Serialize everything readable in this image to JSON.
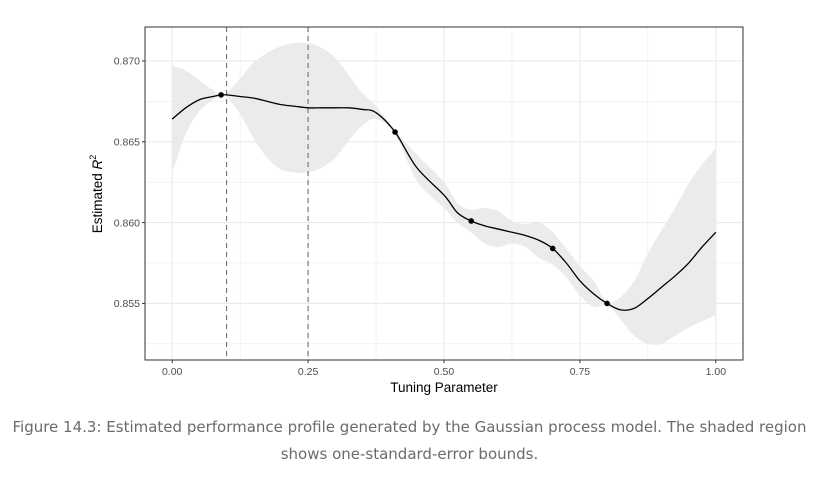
{
  "chart_data": {
    "type": "line",
    "xlabel": "Tuning Parameter",
    "ylabel_main": "Estimated ",
    "ylabel_symbol": "R",
    "ylabel_superscript": "2",
    "xlim": [
      -0.05,
      1.05
    ],
    "ylim": [
      0.8515,
      0.8721
    ],
    "grid": true,
    "x_ticks": [
      0.0,
      0.25,
      0.5,
      0.75,
      1.0
    ],
    "x_tick_labels": [
      "0.00",
      "0.25",
      "0.50",
      "0.75",
      "1.00"
    ],
    "y_ticks": [
      0.855,
      0.86,
      0.865,
      0.87
    ],
    "y_tick_labels": [
      "0.855",
      "0.860",
      "0.865",
      "0.870"
    ],
    "vlines": [
      0.1,
      0.25
    ],
    "series": [
      {
        "role": "mean",
        "x": [
          0.0,
          0.025,
          0.05,
          0.075,
          0.09,
          0.1,
          0.125,
          0.15,
          0.175,
          0.2,
          0.225,
          0.25,
          0.275,
          0.3,
          0.325,
          0.35,
          0.375,
          0.41,
          0.45,
          0.5,
          0.525,
          0.55,
          0.575,
          0.6,
          0.625,
          0.65,
          0.675,
          0.7,
          0.725,
          0.75,
          0.775,
          0.8,
          0.825,
          0.85,
          0.875,
          0.9,
          0.925,
          0.95,
          0.975,
          1.0
        ],
        "y": [
          0.8664,
          0.8671,
          0.8676,
          0.8678,
          0.8679,
          0.8679,
          0.8678,
          0.8677,
          0.8675,
          0.8673,
          0.8672,
          0.8671,
          0.8671,
          0.8671,
          0.8671,
          0.867,
          0.8668,
          0.8656,
          0.8634,
          0.8617,
          0.8606,
          0.8601,
          0.8598,
          0.8596,
          0.8594,
          0.8592,
          0.8589,
          0.8584,
          0.8575,
          0.8564,
          0.8556,
          0.855,
          0.8546,
          0.8547,
          0.8553,
          0.856,
          0.8567,
          0.8575,
          0.8585,
          0.8594
        ]
      }
    ],
    "band": {
      "role": "one standard error",
      "x": [
        0.0,
        0.025,
        0.05,
        0.075,
        0.09,
        0.1,
        0.125,
        0.15,
        0.175,
        0.2,
        0.225,
        0.25,
        0.275,
        0.3,
        0.325,
        0.35,
        0.375,
        0.41,
        0.45,
        0.5,
        0.525,
        0.55,
        0.575,
        0.6,
        0.625,
        0.65,
        0.675,
        0.7,
        0.725,
        0.75,
        0.775,
        0.8,
        0.825,
        0.85,
        0.875,
        0.9,
        0.925,
        0.95,
        0.975,
        1.0
      ],
      "lower": [
        0.8631,
        0.8655,
        0.8669,
        0.8676,
        0.8679,
        0.8678,
        0.8667,
        0.8652,
        0.864,
        0.8633,
        0.8631,
        0.8631,
        0.8634,
        0.864,
        0.8651,
        0.866,
        0.8664,
        0.8655,
        0.8626,
        0.8609,
        0.86,
        0.8594,
        0.8587,
        0.8585,
        0.8587,
        0.8585,
        0.8578,
        0.8574,
        0.8566,
        0.8555,
        0.8548,
        0.8549,
        0.854,
        0.853,
        0.8525,
        0.8525,
        0.853,
        0.8535,
        0.8539,
        0.8543
      ],
      "upper": [
        0.8697,
        0.8694,
        0.8688,
        0.8682,
        0.8679,
        0.868,
        0.8689,
        0.8699,
        0.8705,
        0.8709,
        0.8711,
        0.8711,
        0.8708,
        0.8702,
        0.8691,
        0.868,
        0.8672,
        0.8657,
        0.8642,
        0.8625,
        0.8612,
        0.8608,
        0.8609,
        0.8607,
        0.8601,
        0.8599,
        0.86,
        0.8594,
        0.8584,
        0.8573,
        0.8564,
        0.8551,
        0.8554,
        0.8564,
        0.8581,
        0.8595,
        0.8609,
        0.8624,
        0.8636,
        0.8646
      ]
    },
    "points": {
      "x": [
        0.09,
        0.41,
        0.55,
        0.7,
        0.8
      ],
      "y": [
        0.8679,
        0.8656,
        0.8601,
        0.8584,
        0.855
      ]
    }
  },
  "caption": {
    "line1": "Figure 14.3: Estimated performance profile generated by the Gaussian process model. The shaded region",
    "line2": "shows one-standard-error bounds."
  },
  "colors": {
    "band": "#ebebeb",
    "line": "#000000",
    "grid": "#ebebeb",
    "panel_border": "#333333",
    "vline": "#707070",
    "caption": "#6b6b6b"
  }
}
